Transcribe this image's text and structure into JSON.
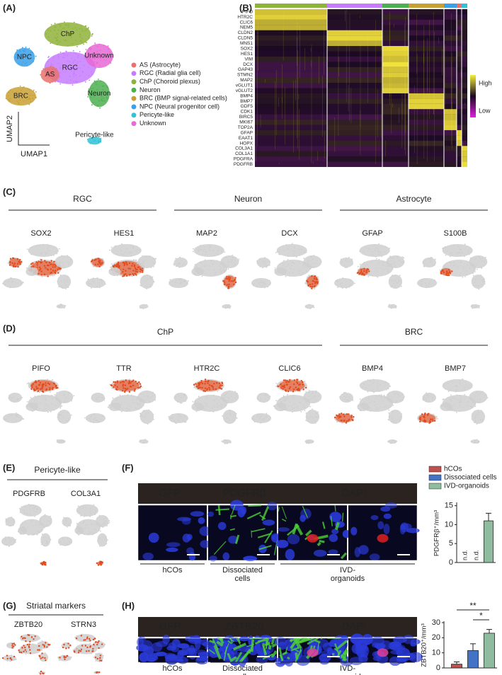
{
  "panels": {
    "A": {
      "label": "(A)",
      "clusters": [
        "ChP",
        "NPC",
        "RGC",
        "AS",
        "Unknown",
        "BRC",
        "Neuron",
        "Pericyte-like"
      ],
      "legend": [
        {
          "text": "AS (Astrocyte)",
          "color": "#e8736c"
        },
        {
          "text": "RGC (Radial glia cell)",
          "color": "#c77cff"
        },
        {
          "text": "ChP (Choroid plexus)",
          "color": "#8fb23a"
        },
        {
          "text": "Neuron",
          "color": "#4caf50"
        },
        {
          "text": "BRC (BMP signal-related cells)",
          "color": "#c8a032"
        },
        {
          "text": "NPC (Neural progenitor cell)",
          "color": "#3aa0e8"
        },
        {
          "text": "Pericyte-like",
          "color": "#33c1d6"
        },
        {
          "text": "Unknown",
          "color": "#e86ad6"
        }
      ],
      "x_axis": "UMAP1",
      "y_axis": "UMAP2"
    },
    "B": {
      "label": "(B)",
      "genes": [
        "PIFO",
        "HTR2C",
        "CLIC6",
        "NEM5",
        "CLDN2",
        "CLDN5",
        "MNS1",
        "SOX2",
        "HES1",
        "VIM",
        "DCX",
        "GAP43",
        "STMN2",
        "MAP2",
        "vGLUT1",
        "vGLUT2",
        "BMP4",
        "BMP7",
        "GDF5",
        "CDK1",
        "BIRC5",
        "MKI67",
        "TOP2A",
        "GFAP",
        "EAAT1",
        "HOPX",
        "COL3A1",
        "COL1A1",
        "PDGFRA",
        "PDGFRB"
      ],
      "scale_high": "High",
      "scale_low": "Low"
    },
    "C": {
      "label": "(C)",
      "groups": [
        "RGC",
        "Neuron",
        "Astrocyte"
      ],
      "genes": [
        "SOX2",
        "HES1",
        "MAP2",
        "DCX",
        "GFAP",
        "S100B"
      ]
    },
    "D": {
      "label": "(D)",
      "groups": [
        "ChP",
        "BRC"
      ],
      "genes": [
        "PIFO",
        "TTR",
        "HTR2C",
        "CLIC6",
        "BMP4",
        "BMP7"
      ]
    },
    "E": {
      "label": "(E)",
      "group": "Pericyte-like",
      "genes": [
        "PDGFRB",
        "COL3A1"
      ]
    },
    "F": {
      "label": "(F)",
      "channels": [
        "GFP",
        "PDGFRβ",
        "DAPI"
      ],
      "conditions": [
        "hCOs",
        "Dissociated cells",
        "IVD-organoids"
      ]
    },
    "G": {
      "label": "(G)",
      "group": "Striatal markers",
      "genes": [
        "ZBTB20",
        "STRN3"
      ]
    },
    "H": {
      "label": "(H)",
      "channels": [
        "GFP",
        "ZBTB20",
        "DAPI"
      ],
      "conditions": [
        "hCOs",
        "Dissociated cells",
        "IVD-organoids"
      ]
    }
  },
  "chart_data": [
    {
      "type": "bar",
      "y_label": "PDGFRβ⁺/mm³",
      "categories": [
        "hCOs",
        "Dissociated cells",
        "IVD-organoids"
      ],
      "colors": [
        "#c0504d",
        "#4472c4",
        "#8fbc9f"
      ],
      "values": [
        null,
        null,
        11
      ],
      "value_labels": [
        "n.d.",
        "n.d.",
        null
      ],
      "errors": [
        null,
        null,
        2
      ],
      "ylim": [
        0,
        15.5
      ],
      "yticks": [
        0,
        5,
        10,
        15
      ]
    },
    {
      "type": "bar",
      "y_label": "ZBTB20⁺/mm³",
      "colors": [
        "#c0504d",
        "#4472c4",
        "#8fbc9f"
      ],
      "values": [
        2.5,
        11.5,
        23
      ],
      "errors": [
        1.5,
        4.5,
        2.5
      ],
      "ylim": [
        0,
        30
      ],
      "yticks": [
        0,
        10,
        20,
        30
      ],
      "annotations": [
        "**",
        "*"
      ]
    }
  ]
}
